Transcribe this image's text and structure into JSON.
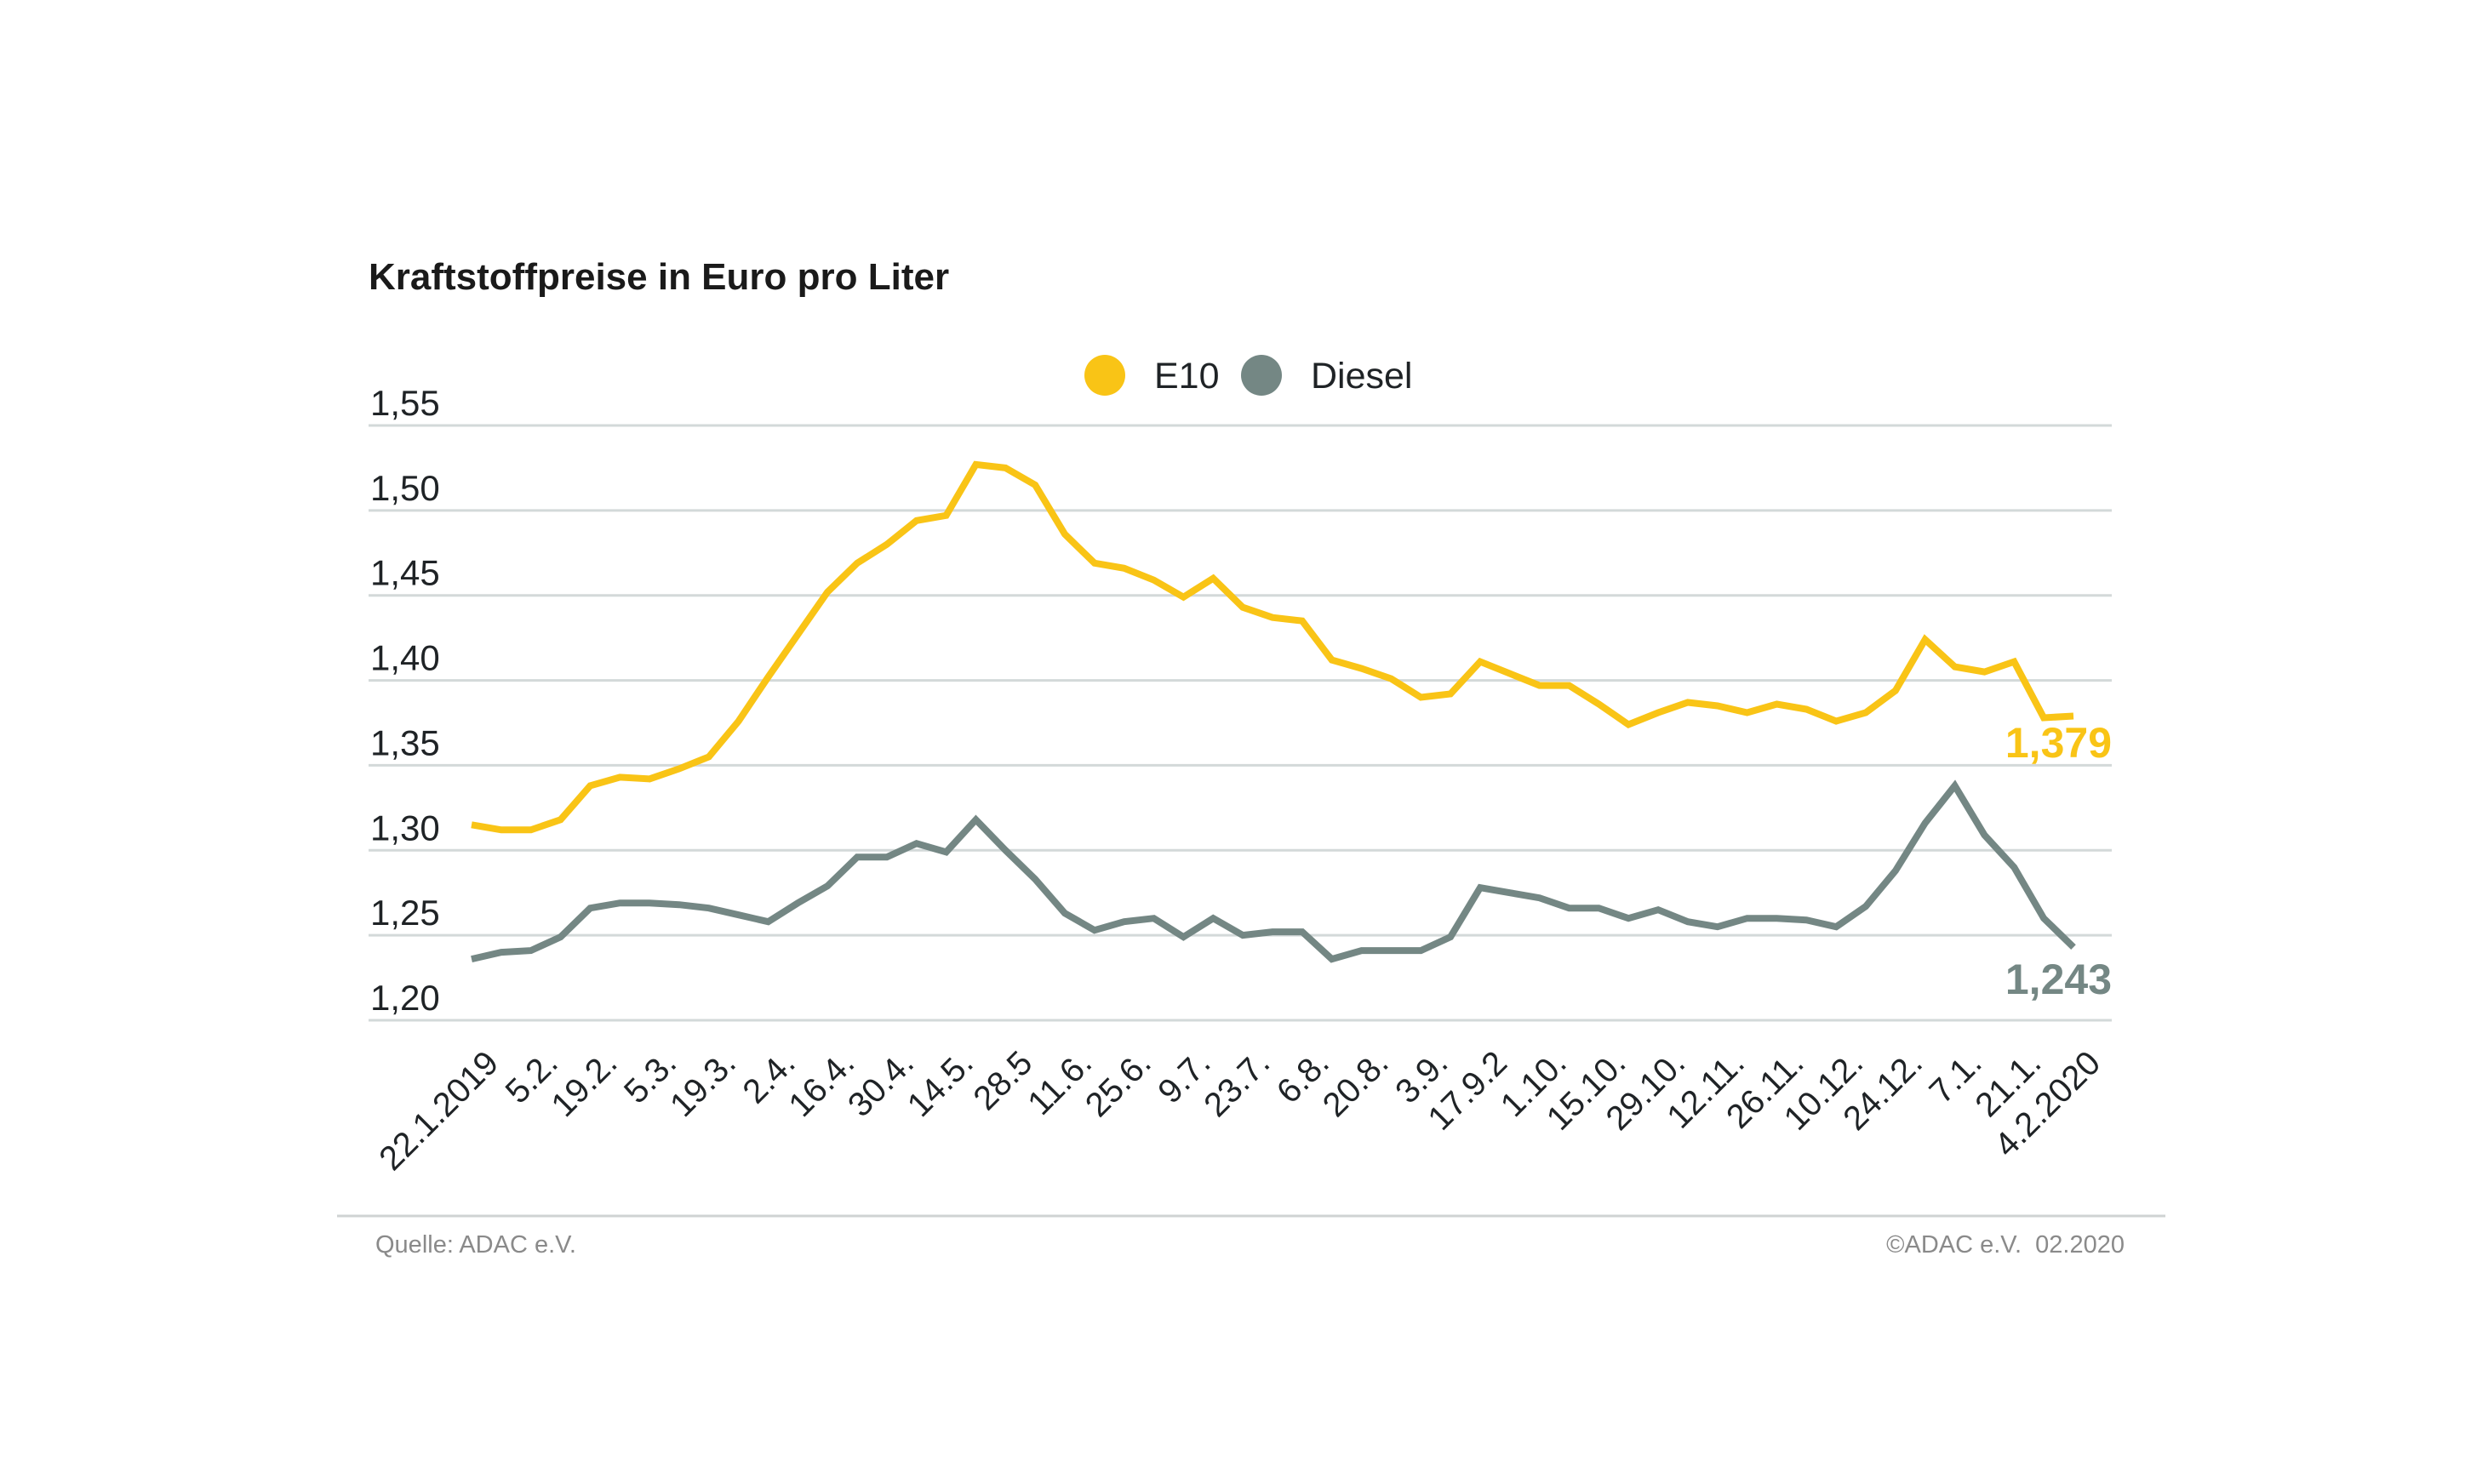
{
  "chart_data": {
    "type": "line",
    "title": "Kraftstoffpreise in Euro pro Liter",
    "xlabel": "",
    "ylabel": "",
    "ylim": [
      1.2,
      1.55
    ],
    "yticks": [
      1.2,
      1.25,
      1.3,
      1.35,
      1.4,
      1.45,
      1.5,
      1.55
    ],
    "ytick_labels": [
      "1,20",
      "1,25",
      "1,30",
      "1,35",
      "1,40",
      "1,45",
      "1,50",
      "1,55"
    ],
    "grid": "horizontal",
    "legend_position": "top-center",
    "x_tick_labels": [
      "22.1.2019",
      "5.2.",
      "19.2.",
      "5.3.",
      "19.3.",
      "2.4.",
      "16.4.",
      "30.4.",
      "14.5.",
      "28.5",
      "11.6.",
      "25.6.",
      "9.7.",
      "23.7.",
      "6.8.",
      "20.8.",
      "3.9.",
      "17.9.2",
      "1.10.",
      "15.10.",
      "29.10.",
      "12.11.",
      "26.11.",
      "10.12.",
      "24.12.",
      "7.1.",
      "21.1.",
      "4.2.2020"
    ],
    "series": [
      {
        "name": "E10",
        "color": "#F9C416",
        "end_label": "1,379",
        "values": [
          1.315,
          1.312,
          1.312,
          1.318,
          1.338,
          1.343,
          1.342,
          1.348,
          1.355,
          1.376,
          1.402,
          1.427,
          1.452,
          1.469,
          1.48,
          1.494,
          1.497,
          1.527,
          1.525,
          1.515,
          1.486,
          1.469,
          1.466,
          1.459,
          1.449,
          1.46,
          1.443,
          1.437,
          1.435,
          1.412,
          1.407,
          1.401,
          1.39,
          1.392,
          1.411,
          1.404,
          1.397,
          1.397,
          1.386,
          1.374,
          1.381,
          1.387,
          1.385,
          1.381,
          1.386,
          1.383,
          1.376,
          1.381,
          1.394,
          1.424,
          1.408,
          1.405,
          1.411,
          1.378,
          1.379
        ]
      },
      {
        "name": "Diesel",
        "color": "#748784",
        "end_label": "1,243",
        "values": [
          1.236,
          1.24,
          1.241,
          1.249,
          1.266,
          1.269,
          1.269,
          1.268,
          1.266,
          1.262,
          1.258,
          1.269,
          1.279,
          1.296,
          1.296,
          1.304,
          1.299,
          1.318,
          1.3,
          1.283,
          1.263,
          1.253,
          1.258,
          1.26,
          1.249,
          1.26,
          1.25,
          1.252,
          1.252,
          1.236,
          1.241,
          1.241,
          1.241,
          1.249,
          1.278,
          1.275,
          1.272,
          1.266,
          1.266,
          1.26,
          1.265,
          1.258,
          1.255,
          1.26,
          1.26,
          1.259,
          1.255,
          1.267,
          1.288,
          1.316,
          1.338,
          1.309,
          1.29,
          1.26,
          1.243
        ]
      }
    ]
  },
  "footer": {
    "source": "Quelle: ADAC e.V.",
    "copyright": "©ADAC e.V.  02.2020"
  }
}
